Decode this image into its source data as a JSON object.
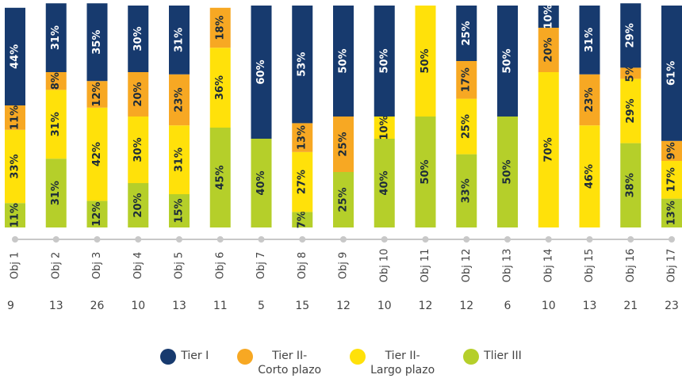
{
  "chart_data": {
    "type": "stacked_bar",
    "categories": [
      "Obj 1",
      "Obj 2",
      "Obj 3",
      "Obj 4",
      "Obj 5",
      "Obj 6",
      "Obj 7",
      "Obj 8",
      "Obj 9",
      "Obj 10",
      "Obj 11",
      "Obj 12",
      "Obj 13",
      "Obj 14",
      "Obj 15",
      "Obj 16",
      "Obj 17"
    ],
    "counts": [
      9,
      13,
      26,
      10,
      13,
      11,
      5,
      15,
      12,
      10,
      12,
      12,
      6,
      10,
      13,
      21,
      23
    ],
    "ylim": [
      0,
      100
    ],
    "series": [
      {
        "name": "Tlier III",
        "color": "#b5cf2a",
        "label_color": "#1c2b3a",
        "values": [
          11,
          31,
          12,
          20,
          15,
          45,
          40,
          7,
          25,
          40,
          50,
          33,
          50,
          0,
          0,
          38,
          13
        ],
        "value_labels": [
          "11%",
          "31%",
          "12%",
          "20%",
          "15%",
          "45%",
          "40%",
          "7%",
          "25%",
          "40%",
          "50%",
          "33%",
          "50%",
          null,
          null,
          "38%",
          "13%"
        ]
      },
      {
        "name": "Tier II-\nLargo plazo",
        "color": "#ffe10a",
        "label_color": "#1c2b3a",
        "values": [
          33,
          31,
          42,
          30,
          31,
          36,
          0,
          27,
          0,
          10,
          50,
          25,
          0,
          70,
          46,
          29,
          17
        ],
        "value_labels": [
          "33%",
          "31%",
          "42%",
          "30%",
          "31%",
          "36%",
          null,
          "27%",
          null,
          "10%",
          "50%",
          "25%",
          null,
          "70%",
          "46%",
          "29%",
          "17%"
        ]
      },
      {
        "name": "Tier II-\nCorto plazo",
        "color": "#f7a823",
        "label_color": "#1c2b3a",
        "values": [
          11,
          8,
          12,
          20,
          23,
          18,
          0,
          13,
          25,
          0,
          0,
          17,
          0,
          20,
          23,
          5,
          9
        ],
        "value_labels": [
          "11%",
          "8%",
          "12%",
          "20%",
          "23%",
          "18%",
          null,
          "13%",
          "25%",
          null,
          null,
          "17%",
          null,
          "20%",
          "23%",
          "5%",
          "9%"
        ]
      },
      {
        "name": "Tier I",
        "color": "#173a6e",
        "label_color": "#ffffff",
        "values": [
          44,
          31,
          35,
          30,
          31,
          0,
          60,
          53,
          50,
          50,
          0,
          25,
          50,
          10,
          31,
          29,
          61
        ],
        "value_labels": [
          "44%",
          "31%",
          "35%",
          "30%",
          "31%",
          null,
          "60%",
          "53%",
          "50%",
          "50%",
          null,
          "25%",
          "50%",
          "10%",
          "31%",
          "29%",
          "61%"
        ]
      }
    ]
  }
}
